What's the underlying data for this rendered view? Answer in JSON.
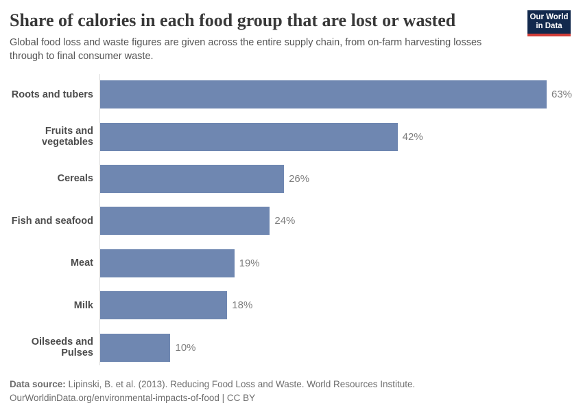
{
  "header": {
    "logo": {
      "line1": "Our World",
      "line2": "in Data",
      "bg_color": "#12294d",
      "accent_color": "#d13d38"
    }
  },
  "chart_data": {
    "type": "bar",
    "orientation": "horizontal",
    "title": "Share of calories in each food group that are lost or wasted",
    "subtitle": "Global food loss and waste figures are given across the entire supply chain, from on-farm harvesting losses through to final consumer waste.",
    "categories": [
      "Roots and tubers",
      "Fruits and vegetables",
      "Cereals",
      "Fish and seafood",
      "Meat",
      "Milk",
      "Oilseeds and Pulses"
    ],
    "values": [
      63,
      42,
      26,
      24,
      19,
      18,
      10
    ],
    "value_labels": [
      "63%",
      "42%",
      "26%",
      "24%",
      "19%",
      "18%",
      "10%"
    ],
    "unit": "%",
    "xlim": [
      0,
      63
    ],
    "bar_color": "#6f87b1",
    "axis_color": "#dcdcdc",
    "grid": false,
    "legend": "none",
    "xlabel": "",
    "ylabel": ""
  },
  "footer": {
    "source_label": "Data source:",
    "source_text": "Lipinski, B. et al. (2013). Reducing Food Loss and Waste. World Resources Institute.",
    "citation": "OurWorldinData.org/environmental-impacts-of-food | CC BY"
  }
}
